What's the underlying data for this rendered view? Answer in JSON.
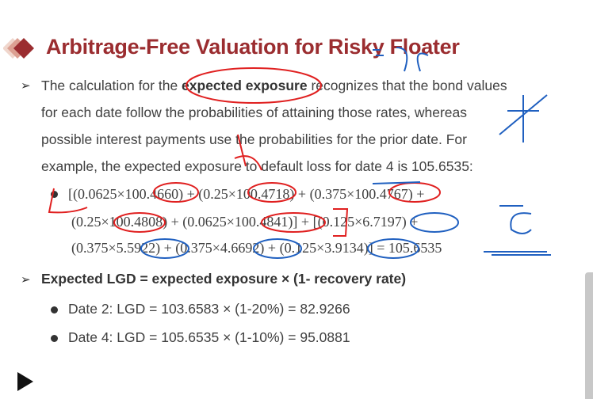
{
  "slide": {
    "title": "Arbitrage-Free Valuation for Risky Floater",
    "accent_color": "#9b2d30",
    "para1": {
      "l1a": "The calculation for the ",
      "l1b": "expected exposure",
      "l1c": " recognizes that the bond values",
      "l2": "for each date follow the probabilities of attaining those rates, whereas",
      "l3": "possible interest payments use the probabilities for the prior date. For",
      "l4": "example, the expected exposure to default loss for date 4 is 105.6535:"
    },
    "formula": {
      "l1": "[(0.0625×100.4660) + (0.25×100.4718) + (0.375×100.4767) +",
      "l2": "(0.25×100.4808) + (0.0625×100.4841)] + [(0.125×6.7197) +",
      "l3": "(0.375×5.5922) + (0.375×4.6692) + (0.125×3.9134)] = 105.6535"
    },
    "para2": "Expected LGD = expected exposure × (1- recovery rate)",
    "sub_bullets": [
      "Date 2: LGD = 103.6583 × (1-20%) = 82.9266",
      "Date 4: LGD = 105.6535 × (1-10%) = 95.0881"
    ]
  }
}
